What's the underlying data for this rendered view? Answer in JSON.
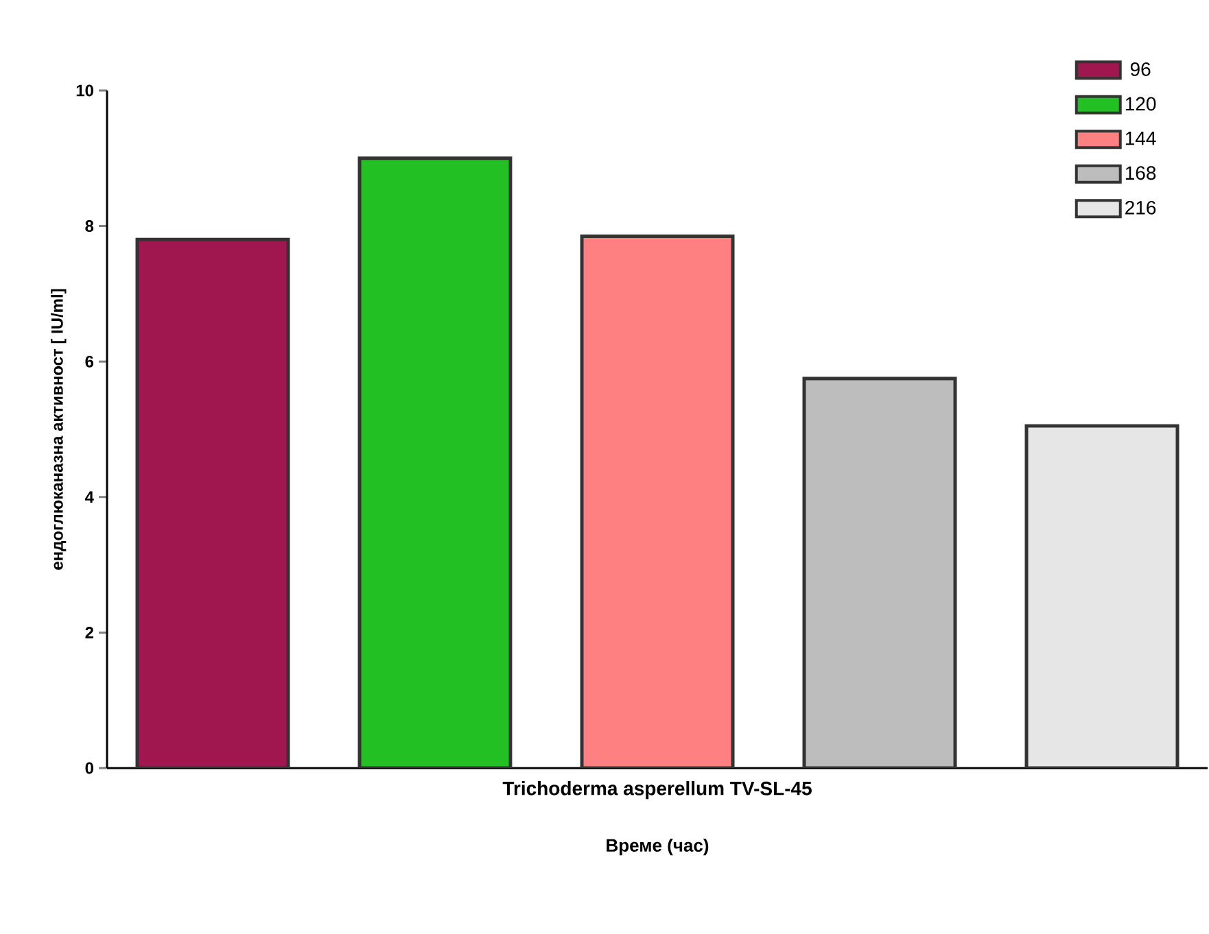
{
  "chart_data": {
    "type": "bar",
    "xlabel": "Време (час)",
    "ylabel": "ендоглюканазна активност [ IU/ml]",
    "categories": [
      "Trichoderma asperellum TV-SL-45"
    ],
    "series": [
      {
        "name": "96",
        "color": "#a0174f",
        "values": [
          7.8
        ]
      },
      {
        "name": "120",
        "color": "#22c022",
        "values": [
          9.0
        ]
      },
      {
        "name": "144",
        "color": "#ff8080",
        "values": [
          7.85
        ]
      },
      {
        "name": "168",
        "color": "#bdbdbd",
        "values": [
          5.75
        ]
      },
      {
        "name": "216",
        "color": "#e6e6e6",
        "values": [
          5.05
        ]
      }
    ],
    "ylim": [
      0,
      10
    ],
    "yticks": [
      0,
      2,
      4,
      6,
      8,
      10
    ],
    "legend": "top right"
  }
}
